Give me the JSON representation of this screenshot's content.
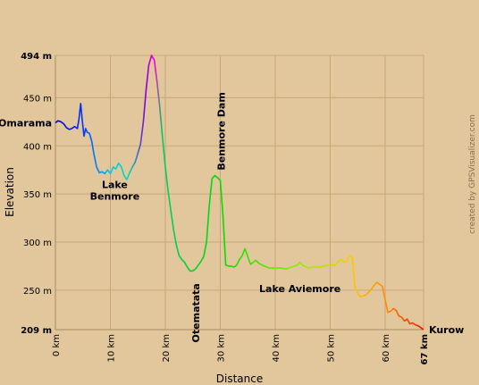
{
  "chart_data": {
    "type": "line",
    "xlabel": "Distance",
    "ylabel": "Elevation",
    "xlim": [
      0,
      67
    ],
    "ylim": [
      209,
      494
    ],
    "x_ticks": [
      {
        "value": 0,
        "label": "0 km"
      },
      {
        "value": 10,
        "label": "10 km"
      },
      {
        "value": 20,
        "label": "20 km"
      },
      {
        "value": 30,
        "label": "30 km"
      },
      {
        "value": 40,
        "label": "40 km"
      },
      {
        "value": 50,
        "label": "50 km"
      },
      {
        "value": 60,
        "label": "60 km"
      },
      {
        "value": 67,
        "label": "67 km",
        "bold": true
      }
    ],
    "y_ticks": [
      {
        "value": 494,
        "label": "494 m",
        "bold": true
      },
      {
        "value": 450,
        "label": "450 m"
      },
      {
        "value": 400,
        "label": "400 m"
      },
      {
        "value": 350,
        "label": "350 m"
      },
      {
        "value": 300,
        "label": "300 m"
      },
      {
        "value": 250,
        "label": "250 m"
      },
      {
        "value": 209,
        "label": "209 m",
        "bold": true
      }
    ],
    "grid": true,
    "credit": "created by GPSVisualizer.com",
    "series": [
      {
        "x": [
          0,
          0.5,
          1,
          1.5,
          2,
          2.5,
          3,
          3.5,
          4,
          4.3,
          4.6,
          4.9,
          5.2,
          5.5,
          5.8,
          6.2,
          6.6,
          7,
          7.5,
          8,
          8.5,
          9,
          9.5,
          10,
          10.5,
          11,
          11.5,
          12,
          12.5,
          13,
          13.5,
          14,
          14.5,
          15,
          15.5,
          16,
          16.5,
          17,
          17.5,
          18,
          18.5,
          19,
          19.5,
          20,
          20.5,
          21,
          21.5,
          22,
          22.5,
          23,
          23.5,
          24,
          24.5,
          25,
          25.5,
          26,
          26.5,
          27,
          27.5,
          28,
          28.5,
          29,
          29.5,
          30,
          30.5,
          31,
          31.5,
          32,
          32.5,
          33,
          33.5,
          34,
          34.5,
          35,
          35.5,
          36,
          36.5,
          37,
          38,
          39,
          40,
          41,
          42,
          43,
          44,
          44.5,
          45,
          46,
          47,
          48,
          49,
          50,
          50.5,
          51,
          51.5,
          52,
          52.5,
          53,
          53.5,
          54,
          54.5,
          55,
          55.5,
          56,
          56.5,
          57,
          57.5,
          58,
          58.5,
          59,
          59.5,
          60,
          60.5,
          61,
          61.5,
          62,
          62.5,
          63,
          63.5,
          64,
          64.5,
          65,
          65.5,
          66,
          66.5,
          67
        ],
        "y": [
          424,
          426,
          425,
          423,
          419,
          417,
          418,
          420,
          418,
          428,
          444,
          426,
          410,
          418,
          414,
          413,
          405,
          392,
          378,
          372,
          373,
          371,
          375,
          371,
          378,
          376,
          382,
          378,
          369,
          365,
          372,
          378,
          383,
          392,
          402,
          425,
          458,
          484,
          494,
          489,
          466,
          440,
          408,
          378,
          353,
          333,
          313,
          297,
          286,
          282,
          279,
          274,
          270,
          270,
          272,
          276,
          280,
          285,
          300,
          338,
          366,
          369,
          367,
          364,
          326,
          276,
          275,
          275,
          274,
          276,
          282,
          286,
          293,
          285,
          277,
          279,
          281,
          278,
          275,
          273,
          273,
          273,
          272,
          274,
          276,
          279,
          276,
          273,
          274,
          274,
          275,
          277,
          276,
          276,
          280,
          282,
          279,
          280,
          286,
          284,
          254,
          247,
          243,
          244,
          245,
          248,
          251,
          255,
          258,
          256,
          254,
          240,
          227,
          228,
          231,
          229,
          223,
          222,
          218,
          220,
          215,
          216,
          214,
          213,
          211,
          209
        ]
      }
    ],
    "annotations": [
      {
        "text": "Omarama",
        "x": 0,
        "y": 424,
        "anchor": "end",
        "dx": -4,
        "dy": 4,
        "rotate": false
      },
      {
        "text": "Lake",
        "x": 10.8,
        "y": 371,
        "anchor": "middle",
        "dx": 0,
        "dy": 16,
        "rotate": false
      },
      {
        "text": "Benmore",
        "x": 10.8,
        "y": 371,
        "anchor": "middle",
        "dx": 0,
        "dy": 29,
        "rotate": false
      },
      {
        "text": "Benmore Dam",
        "x": 30,
        "y": 369,
        "anchor": "start",
        "dx": 5,
        "dy": -6,
        "rotate": true
      },
      {
        "text": "Otematata",
        "x": 25.5,
        "y": 272,
        "anchor": "end",
        "dx": 4,
        "dy": 16,
        "rotate": true
      },
      {
        "text": "Lake Aviemore",
        "x": 44.5,
        "y": 273,
        "anchor": "middle",
        "dx": 0,
        "dy": 27,
        "rotate": false
      },
      {
        "text": "Kurow",
        "x": 67,
        "y": 209,
        "anchor": "start",
        "dx": 6,
        "dy": 4,
        "rotate": false
      }
    ]
  }
}
